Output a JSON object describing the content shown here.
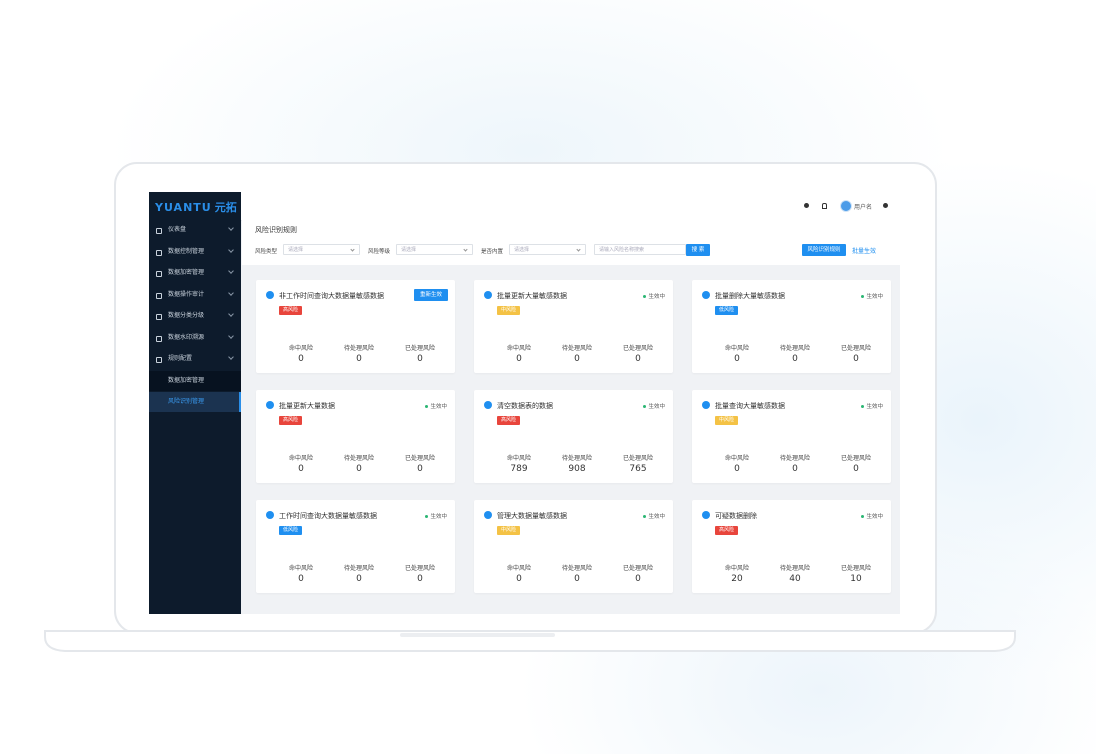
{
  "brand": {
    "name": "YUANTU",
    "name_cn": "元拓"
  },
  "menu": [
    {
      "label": "仪表盘"
    },
    {
      "label": "数据控制管理"
    },
    {
      "label": "数据加密管理"
    },
    {
      "label": "数据操作审计"
    },
    {
      "label": "数据分类分级"
    },
    {
      "label": "数据水印溯源"
    },
    {
      "label": "规则配置",
      "children": [
        {
          "label": "数据加密管理"
        },
        {
          "label": "风险识别管理",
          "active": true
        }
      ]
    }
  ],
  "user": "用户名",
  "page_title": "风险识别规则",
  "filters": [
    {
      "label": "风险类型",
      "placeholder": "请选择"
    },
    {
      "label": "风险等级",
      "placeholder": "请选择"
    },
    {
      "label": "是否内置",
      "placeholder": "请选择"
    }
  ],
  "search_placeholder": "请输入风险名称搜索",
  "search_button": "搜 索",
  "add_button": "风险识别规则",
  "batch_button": "批量生效",
  "stat_labels": [
    "命中风险",
    "待处理风险",
    "已处理风险"
  ],
  "cards": [
    {
      "title": "非工作时间查询大数据量敏感数据",
      "action": "重新生效",
      "level": "高风险",
      "level_color": "#e8453c",
      "stats": [
        0,
        0,
        0
      ]
    },
    {
      "title": "批量更新大量敏感数据",
      "status": "生效中",
      "level": "中风险",
      "level_color": "#f4c245",
      "stats": [
        0,
        0,
        0
      ]
    },
    {
      "title": "批量删除大量敏感数据",
      "status": "生效中",
      "level": "低风险",
      "level_color": "#1f8ff0",
      "stats": [
        0,
        0,
        0
      ]
    },
    {
      "title": "批量更新大量数据",
      "status": "生效中",
      "level": "高风险",
      "level_color": "#e8453c",
      "stats": [
        0,
        0,
        0
      ]
    },
    {
      "title": "清空数据表的数据",
      "status": "生效中",
      "level": "高风险",
      "level_color": "#e8453c",
      "stats": [
        789,
        908,
        765
      ]
    },
    {
      "title": "批量查询大量敏感数据",
      "status": "生效中",
      "level": "中风险",
      "level_color": "#f4c245",
      "stats": [
        0,
        0,
        0
      ]
    },
    {
      "title": "工作时间查询大数据量敏感数据",
      "status": "生效中",
      "level": "低风险",
      "level_color": "#1f8ff0",
      "stats": [
        0,
        0,
        0
      ]
    },
    {
      "title": "管理大数据量敏感数据",
      "status": "生效中",
      "level": "中风险",
      "level_color": "#f4c245",
      "stats": [
        0,
        0,
        0
      ]
    },
    {
      "title": "可疑数据删除",
      "status": "生效中",
      "level": "高风险",
      "level_color": "#e8453c",
      "stats": [
        20,
        40,
        10
      ]
    }
  ]
}
